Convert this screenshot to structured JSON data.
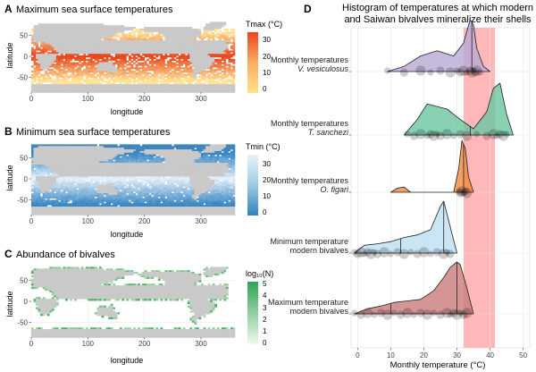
{
  "panels": {
    "A": {
      "letter": "A",
      "title": "Maximum sea surface temperatures",
      "legend_title": "Tmax (°C)",
      "legend_ticks": [
        "30",
        "20",
        "10",
        "0"
      ],
      "xlabel": "longitude",
      "ylabel": "latitude",
      "xticks": [
        "0",
        "100",
        "200",
        "300"
      ],
      "yticks": [
        "50",
        "0",
        "-50"
      ]
    },
    "B": {
      "letter": "B",
      "title": "Minimum sea surface temperatures",
      "legend_title": "Tmin (°C)",
      "legend_ticks": [
        "30",
        "20",
        "10",
        "0"
      ],
      "xlabel": "longitude",
      "ylabel": "latitude",
      "xticks": [
        "0",
        "100",
        "200",
        "300"
      ],
      "yticks": [
        "50",
        "0",
        "-50"
      ]
    },
    "C": {
      "letter": "C",
      "title": "Abundance of bivalves",
      "legend_title": "log₁₀(N)",
      "legend_ticks": [
        "5",
        "4",
        "3",
        "2",
        "1",
        "0"
      ],
      "xlabel": "longitude",
      "ylabel": "latitude",
      "xticks": [
        "0",
        "100",
        "200",
        "300"
      ],
      "yticks": [
        "50",
        "0",
        "-50"
      ]
    },
    "D": {
      "letter": "D"
    }
  },
  "colors": {
    "land": "#c7c7c7",
    "tmax_low": "#fee08b",
    "tmax_high": "#e8451c",
    "tmin_low": "#deebf7",
    "tmin_high": "#3182bd",
    "abund_low": "#e5f5e0",
    "abund_high": "#31a354",
    "band": "#ffb3b6"
  },
  "chart_data": [
    {
      "type": "heatmap",
      "panel": "A",
      "title": "Maximum sea surface temperatures",
      "xlabel": "longitude",
      "ylabel": "latitude",
      "xlim": [
        0,
        360
      ],
      "ylim": [
        -85,
        85
      ],
      "legend_title": "Tmax (°C)",
      "color_range": [
        0,
        35
      ]
    },
    {
      "type": "heatmap",
      "panel": "B",
      "title": "Minimum sea surface temperatures",
      "xlabel": "longitude",
      "ylabel": "latitude",
      "xlim": [
        0,
        360
      ],
      "ylim": [
        -85,
        85
      ],
      "legend_title": "Tmin (°C)",
      "color_range": [
        0,
        35
      ]
    },
    {
      "type": "heatmap",
      "panel": "C",
      "title": "Abundance of bivalves",
      "xlabel": "longitude",
      "ylabel": "latitude",
      "xlim": [
        0,
        360
      ],
      "ylim": [
        -85,
        85
      ],
      "legend_title": "log₁₀(N)",
      "color_range": [
        0,
        5
      ]
    },
    {
      "type": "area",
      "panel": "D",
      "title": "Histogram of temperatures at which modern and Saiwan bivalves mineralize their shells",
      "xlabel": "Monthly temperature (°C)",
      "xlim": [
        -2,
        52
      ],
      "xticks": [
        0,
        10,
        20,
        30,
        40,
        50
      ],
      "shaded_band": [
        32,
        41.5
      ],
      "series": [
        {
          "name": "Monthly temperatures V. vesiculosus",
          "label_line1": "Monthly temperatures",
          "label_line2": "V. vesiculosus",
          "color": "#b8a9d4",
          "x": [
            9,
            14,
            19,
            24,
            29,
            32,
            34,
            35,
            36,
            38,
            40
          ],
          "y": [
            0,
            0.1,
            0.3,
            0.4,
            0.3,
            0.55,
            1,
            0.9,
            0.45,
            0.1,
            0
          ],
          "medians": [
            34.5
          ],
          "points": [
            9,
            14,
            19,
            22,
            25,
            28,
            30,
            31,
            32,
            33,
            34,
            34.5,
            35,
            35.5,
            36,
            37
          ]
        },
        {
          "name": "Monthly temperatures T. sanchezi",
          "label_line1": "Monthly temperatures",
          "label_line2": "T. sanchezi",
          "color": "#6cc6a0",
          "x": [
            14,
            18,
            21,
            24,
            27,
            31,
            35,
            39,
            41,
            43,
            45,
            47
          ],
          "y": [
            0,
            0.3,
            0.6,
            0.55,
            0.5,
            0.3,
            0.12,
            0.45,
            0.9,
            1,
            0.4,
            0
          ],
          "medians": [
            34
          ],
          "points": [
            15,
            17,
            19,
            21,
            22,
            23,
            24,
            25,
            27,
            29,
            31,
            33,
            36,
            39,
            41,
            42,
            43,
            44,
            45
          ]
        },
        {
          "name": "Monthly temperatures O. figari",
          "label_line1": "Monthly temperatures",
          "label_line2": "O. figari",
          "color": "#f08a3c",
          "x": [
            10,
            12,
            14,
            16,
            29,
            30.5,
            31.5,
            32.5,
            33.5,
            35
          ],
          "y": [
            0,
            0.08,
            0.1,
            0,
            0,
            0.45,
            1,
            0.85,
            0.3,
            0
          ],
          "medians": [
            32
          ],
          "points": [
            30.5,
            31,
            31.5,
            32,
            32.5,
            33
          ]
        },
        {
          "name": "Minimum temperature modern bivalves",
          "label_line1": "Minimum temperature",
          "label_line2": "modern bivalves",
          "color": "#bde0f3",
          "x": [
            -1,
            2,
            6,
            10,
            14,
            18,
            22,
            25,
            26,
            28,
            30
          ],
          "y": [
            0,
            0.15,
            0.18,
            0.22,
            0.3,
            0.35,
            0.45,
            0.9,
            1,
            0.5,
            0
          ],
          "medians": [
            13,
            26
          ],
          "points": [
            -1,
            0,
            1,
            2,
            3,
            4,
            5,
            6,
            8,
            10,
            12,
            14,
            16,
            18,
            20,
            22,
            24,
            26,
            27,
            28
          ]
        },
        {
          "name": "Maximum temperature modern bivalves",
          "label_line1": "Maximum temperature",
          "label_line2": "modern bivalves",
          "color": "#c97b7b",
          "x": [
            -1,
            3,
            7,
            11,
            15,
            19,
            23,
            26,
            28,
            30,
            31,
            33,
            35
          ],
          "y": [
            0,
            0.1,
            0.15,
            0.22,
            0.25,
            0.28,
            0.45,
            0.7,
            0.9,
            1,
            0.95,
            0.5,
            0
          ],
          "medians": [
            10,
            30
          ],
          "points": [
            -1,
            1,
            3,
            5,
            7,
            9,
            11,
            13,
            15,
            17,
            19,
            21,
            23,
            25,
            27,
            28,
            29,
            30,
            31,
            32,
            33
          ]
        }
      ]
    }
  ]
}
